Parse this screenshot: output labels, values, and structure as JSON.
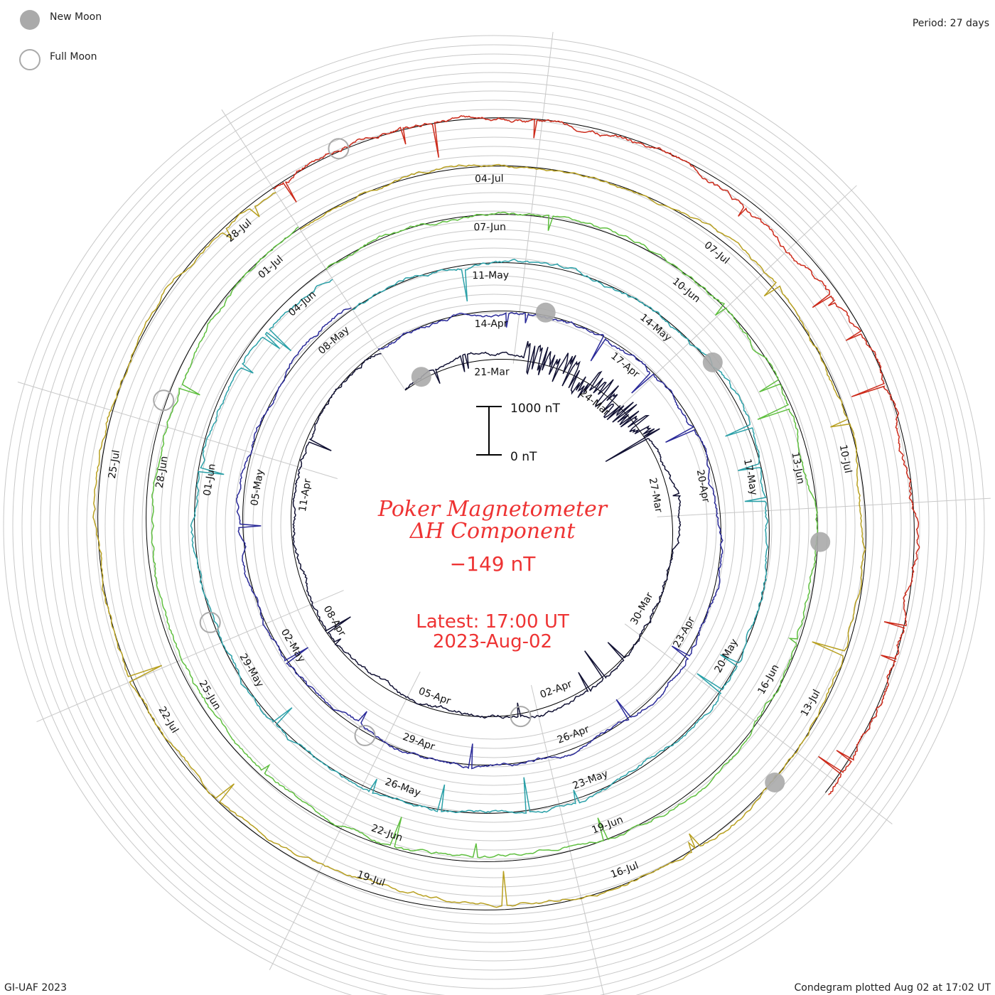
{
  "header": {
    "legend_new_moon": "New Moon",
    "legend_full_moon": "Full Moon",
    "period": "Period: 27 days"
  },
  "footer": {
    "left": "GI-UAF 2023",
    "right": "Condegram plotted Aug 02 at 17:02 UT"
  },
  "center": {
    "title_line1": "Poker Magnetometer",
    "title_line2": "ΔH Component",
    "current_value": "−149 nT",
    "latest_line1": "Latest: 17:00 UT",
    "latest_line2": "2023-Aug-02",
    "scale_top": "1000 nT",
    "scale_bottom": "0 nT"
  },
  "colors": {
    "text_accent": "#ee3333",
    "grid": "#c8c8c8",
    "spokes": "#c8c8c8",
    "baseline": "#000000",
    "new_moon": "#aaaaaa",
    "full_moon": "#aaaaaa"
  },
  "chart_data": {
    "type": "line",
    "subtype": "spiral condegram",
    "period_days": 27,
    "scale_bar_nT": [
      0,
      1000
    ],
    "series": [
      {
        "index": 0,
        "color": "#111133",
        "ticks": [
          "21-Mar",
          "24-Mar",
          "27-Mar",
          "30-Mar",
          "02-Apr",
          "05-Apr",
          "08-Apr",
          "11-Apr"
        ]
      },
      {
        "index": 1,
        "color": "#2a2a99",
        "ticks": [
          "14-Apr",
          "17-Apr",
          "20-Apr",
          "23-Apr",
          "26-Apr",
          "29-Apr",
          "02-May",
          "05-May",
          "08-May"
        ]
      },
      {
        "index": 2,
        "color": "#2aa0a8",
        "ticks": [
          "11-May",
          "14-May",
          "17-May",
          "20-May",
          "23-May",
          "26-May",
          "29-May",
          "01-Jun",
          "04-Jun"
        ]
      },
      {
        "index": 3,
        "color": "#5fbf3f",
        "ticks": [
          "07-Jun",
          "10-Jun",
          "13-Jun",
          "16-Jun",
          "19-Jun",
          "22-Jun",
          "25-Jun",
          "28-Jun",
          "01-Jul"
        ]
      },
      {
        "index": 4,
        "color": "#b8a020",
        "ticks": [
          "04-Jul",
          "07-Jul",
          "10-Jul",
          "13-Jul",
          "16-Jul",
          "19-Jul",
          "22-Jul",
          "25-Jul",
          "28-Jul"
        ]
      },
      {
        "index": 5,
        "color": "#cc2a1a",
        "ticks": []
      }
    ],
    "new_moon_dates": [
      "20-Mar",
      "19-Apr",
      "19-May",
      "18-Jun",
      "17-Jul"
    ],
    "full_moon_dates": [
      "06-Apr",
      "05-May",
      "04-Jun",
      "03-Jul",
      "01-Aug"
    ]
  }
}
